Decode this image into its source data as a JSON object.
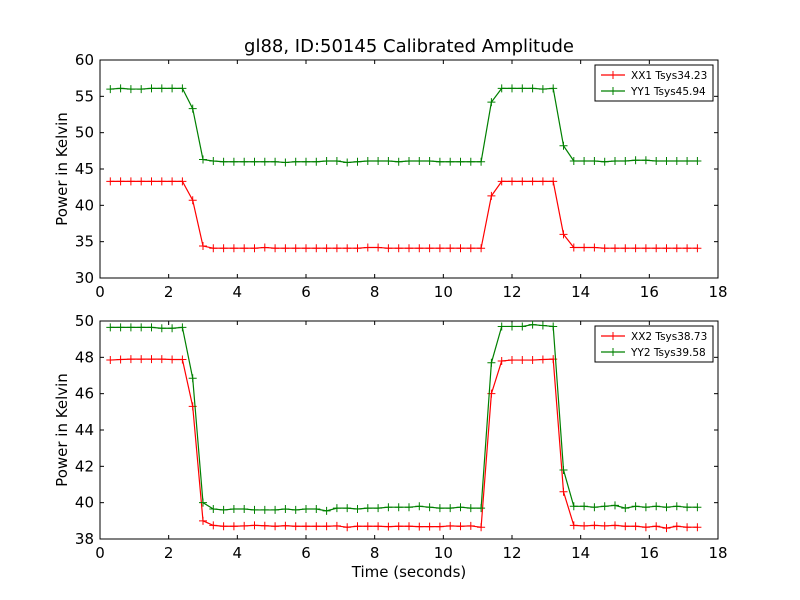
{
  "chart_data": {
    "title": "gl88, ID:50145 Calibrated Amplitude",
    "xlabel": "Time (seconds)",
    "panels": [
      {
        "type": "line",
        "ylabel": "Power in Kelvin",
        "xlim": [
          0,
          18
        ],
        "ylim": [
          30,
          60
        ],
        "xticks": [
          0,
          2,
          4,
          6,
          8,
          10,
          12,
          14,
          16,
          18
        ],
        "yticks": [
          30,
          35,
          40,
          45,
          50,
          55,
          60
        ],
        "legend_position": "top-right",
        "grid": false,
        "series": [
          {
            "name": "XX1 Tsys34.23",
            "color": "#ff0000",
            "x": [
              0.3,
              0.6,
              0.9,
              1.2,
              1.5,
              1.8,
              2.1,
              2.4,
              2.7,
              3.0,
              3.3,
              3.6,
              3.9,
              4.2,
              4.5,
              4.8,
              5.1,
              5.4,
              5.7,
              6.0,
              6.3,
              6.6,
              6.9,
              7.2,
              7.5,
              7.8,
              8.1,
              8.4,
              8.7,
              9.0,
              9.3,
              9.6,
              9.9,
              10.2,
              10.5,
              10.8,
              11.1,
              11.4,
              11.7,
              12.0,
              12.3,
              12.6,
              12.9,
              13.2,
              13.5,
              13.8,
              14.1,
              14.4,
              14.7,
              15.0,
              15.3,
              15.6,
              15.9,
              16.2,
              16.5,
              16.8,
              17.1,
              17.4
            ],
            "y": [
              43.3,
              43.3,
              43.3,
              43.3,
              43.3,
              43.3,
              43.3,
              43.3,
              40.7,
              34.4,
              34.1,
              34.1,
              34.1,
              34.1,
              34.1,
              34.2,
              34.1,
              34.1,
              34.1,
              34.1,
              34.1,
              34.1,
              34.1,
              34.1,
              34.1,
              34.2,
              34.2,
              34.1,
              34.1,
              34.1,
              34.1,
              34.1,
              34.1,
              34.1,
              34.1,
              34.1,
              34.1,
              41.3,
              43.3,
              43.3,
              43.3,
              43.3,
              43.3,
              43.3,
              36.0,
              34.2,
              34.2,
              34.2,
              34.1,
              34.1,
              34.1,
              34.1,
              34.1,
              34.1,
              34.1,
              34.1,
              34.1,
              34.1
            ]
          },
          {
            "name": "YY1 Tsys45.94",
            "color": "#008000",
            "x": [
              0.3,
              0.6,
              0.9,
              1.2,
              1.5,
              1.8,
              2.1,
              2.4,
              2.7,
              3.0,
              3.3,
              3.6,
              3.9,
              4.2,
              4.5,
              4.8,
              5.1,
              5.4,
              5.7,
              6.0,
              6.3,
              6.6,
              6.9,
              7.2,
              7.5,
              7.8,
              8.1,
              8.4,
              8.7,
              9.0,
              9.3,
              9.6,
              9.9,
              10.2,
              10.5,
              10.8,
              11.1,
              11.4,
              11.7,
              12.0,
              12.3,
              12.6,
              12.9,
              13.2,
              13.5,
              13.8,
              14.1,
              14.4,
              14.7,
              15.0,
              15.3,
              15.6,
              15.9,
              16.2,
              16.5,
              16.8,
              17.1,
              17.4
            ],
            "y": [
              56.0,
              56.1,
              56.0,
              56.0,
              56.1,
              56.1,
              56.1,
              56.1,
              53.3,
              46.3,
              46.1,
              46.0,
              46.0,
              46.0,
              46.0,
              46.0,
              46.0,
              45.9,
              46.0,
              46.0,
              46.0,
              46.1,
              46.1,
              45.9,
              46.0,
              46.1,
              46.1,
              46.1,
              46.0,
              46.1,
              46.1,
              46.1,
              46.0,
              46.0,
              46.0,
              46.0,
              46.0,
              54.2,
              56.1,
              56.1,
              56.1,
              56.1,
              56.0,
              56.1,
              48.2,
              46.1,
              46.1,
              46.1,
              46.0,
              46.1,
              46.1,
              46.2,
              46.2,
              46.1,
              46.1,
              46.1,
              46.1,
              46.1
            ]
          }
        ]
      },
      {
        "type": "line",
        "ylabel": "Power in Kelvin",
        "xlim": [
          0,
          18
        ],
        "ylim": [
          38,
          50
        ],
        "xticks": [
          0,
          2,
          4,
          6,
          8,
          10,
          12,
          14,
          16,
          18
        ],
        "yticks": [
          38,
          40,
          42,
          44,
          46,
          48,
          50
        ],
        "legend_position": "top-right",
        "grid": false,
        "series": [
          {
            "name": "XX2 Tsys38.73",
            "color": "#ff0000",
            "x": [
              0.3,
              0.6,
              0.9,
              1.2,
              1.5,
              1.8,
              2.1,
              2.4,
              2.7,
              3.0,
              3.3,
              3.6,
              3.9,
              4.2,
              4.5,
              4.8,
              5.1,
              5.4,
              5.7,
              6.0,
              6.3,
              6.6,
              6.9,
              7.2,
              7.5,
              7.8,
              8.1,
              8.4,
              8.7,
              9.0,
              9.3,
              9.6,
              9.9,
              10.2,
              10.5,
              10.8,
              11.1,
              11.4,
              11.7,
              12.0,
              12.3,
              12.6,
              12.9,
              13.2,
              13.5,
              13.8,
              14.1,
              14.4,
              14.7,
              15.0,
              15.3,
              15.6,
              15.9,
              16.2,
              16.5,
              16.8,
              17.1,
              17.4
            ],
            "y": [
              47.85,
              47.88,
              47.9,
              47.9,
              47.9,
              47.9,
              47.88,
              47.88,
              45.3,
              39.0,
              38.75,
              38.7,
              38.7,
              38.72,
              38.75,
              38.73,
              38.7,
              38.73,
              38.7,
              38.7,
              38.7,
              38.7,
              38.72,
              38.65,
              38.7,
              38.7,
              38.7,
              38.68,
              38.7,
              38.7,
              38.68,
              38.68,
              38.68,
              38.72,
              38.7,
              38.72,
              38.65,
              46.0,
              47.8,
              47.85,
              47.85,
              47.85,
              47.88,
              47.9,
              40.6,
              38.75,
              38.72,
              38.75,
              38.72,
              38.75,
              38.7,
              38.7,
              38.65,
              38.7,
              38.6,
              38.7,
              38.65,
              38.65
            ]
          },
          {
            "name": "YY2 Tsys39.58",
            "color": "#008000",
            "x": [
              0.3,
              0.6,
              0.9,
              1.2,
              1.5,
              1.8,
              2.1,
              2.4,
              2.7,
              3.0,
              3.3,
              3.6,
              3.9,
              4.2,
              4.5,
              4.8,
              5.1,
              5.4,
              5.7,
              6.0,
              6.3,
              6.6,
              6.9,
              7.2,
              7.5,
              7.8,
              8.1,
              8.4,
              8.7,
              9.0,
              9.3,
              9.6,
              9.9,
              10.2,
              10.5,
              10.8,
              11.1,
              11.4,
              11.7,
              12.0,
              12.3,
              12.6,
              12.9,
              13.2,
              13.5,
              13.8,
              14.1,
              14.4,
              14.7,
              15.0,
              15.3,
              15.6,
              15.9,
              16.2,
              16.5,
              16.8,
              17.1,
              17.4
            ],
            "y": [
              49.65,
              49.65,
              49.65,
              49.65,
              49.65,
              49.6,
              49.6,
              49.65,
              46.85,
              40.0,
              39.65,
              39.6,
              39.65,
              39.65,
              39.6,
              39.6,
              39.6,
              39.65,
              39.6,
              39.65,
              39.65,
              39.55,
              39.7,
              39.7,
              39.65,
              39.7,
              39.7,
              39.75,
              39.75,
              39.75,
              39.8,
              39.75,
              39.7,
              39.7,
              39.75,
              39.7,
              39.7,
              47.7,
              49.7,
              49.7,
              49.7,
              49.8,
              49.75,
              49.7,
              41.8,
              39.8,
              39.8,
              39.75,
              39.8,
              39.85,
              39.7,
              39.8,
              39.75,
              39.8,
              39.75,
              39.8,
              39.75,
              39.75
            ]
          }
        ]
      }
    ]
  }
}
